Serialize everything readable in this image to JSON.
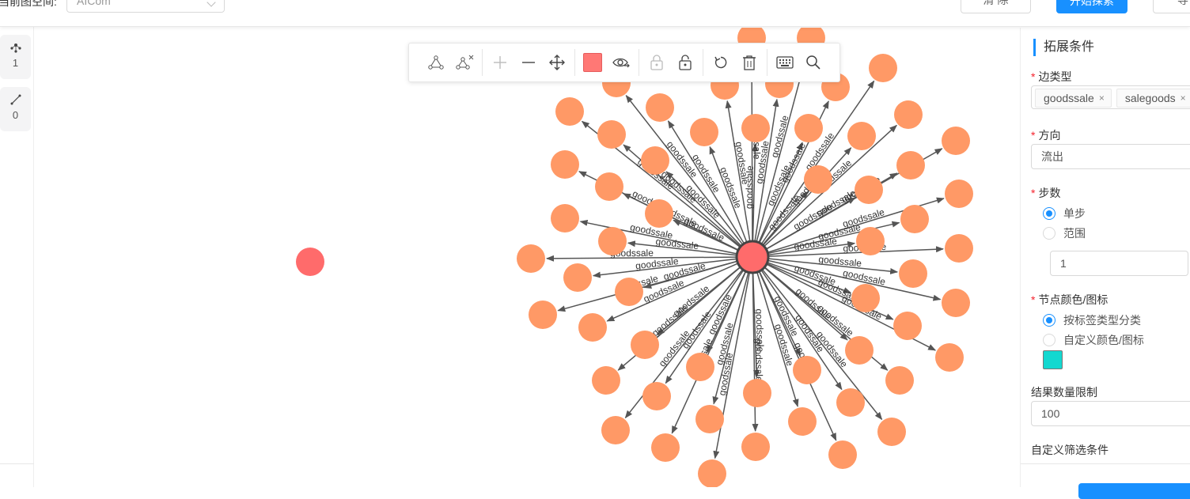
{
  "topbar": {
    "space_label": "当前图空间:",
    "space_value": "AICom",
    "clear_label": "清 除",
    "explore_label": "开始探索",
    "export_label": "导"
  },
  "left_rail": {
    "nodes_count": "1",
    "edges_count": "0"
  },
  "toolbar": {
    "icons": [
      "add-edge-icon",
      "delete-edge-icon",
      "zoom-in-icon",
      "zoom-out-icon",
      "move-icon",
      "node-color-swatch",
      "hide-icon",
      "lock-icon",
      "unlock-icon",
      "undo-icon",
      "delete-icon",
      "keyboard-icon",
      "search-icon"
    ],
    "swatch_color": "#ff7875"
  },
  "graph": {
    "edge_label": "goodssale",
    "center_color": "#ff6b6b",
    "node_color": "#ff9966",
    "edge_color": "#555555"
  },
  "panel": {
    "title": "拓展条件",
    "edge_type_label": "边类型",
    "edge_tags": [
      "goodssale",
      "salegoods"
    ],
    "direction_label": "方向",
    "direction_value": "流出",
    "steps_label": "步数",
    "step_single": "单步",
    "step_range": "范围",
    "step_value": "1",
    "node_style_label": "节点颜色/图标",
    "style_by_label": "按标签类型分类",
    "style_custom": "自定义颜色/图标",
    "custom_color": "#13d8d0",
    "limit_label": "结果数量限制",
    "limit_value": "100",
    "filter_label": "自定义筛选条件"
  }
}
